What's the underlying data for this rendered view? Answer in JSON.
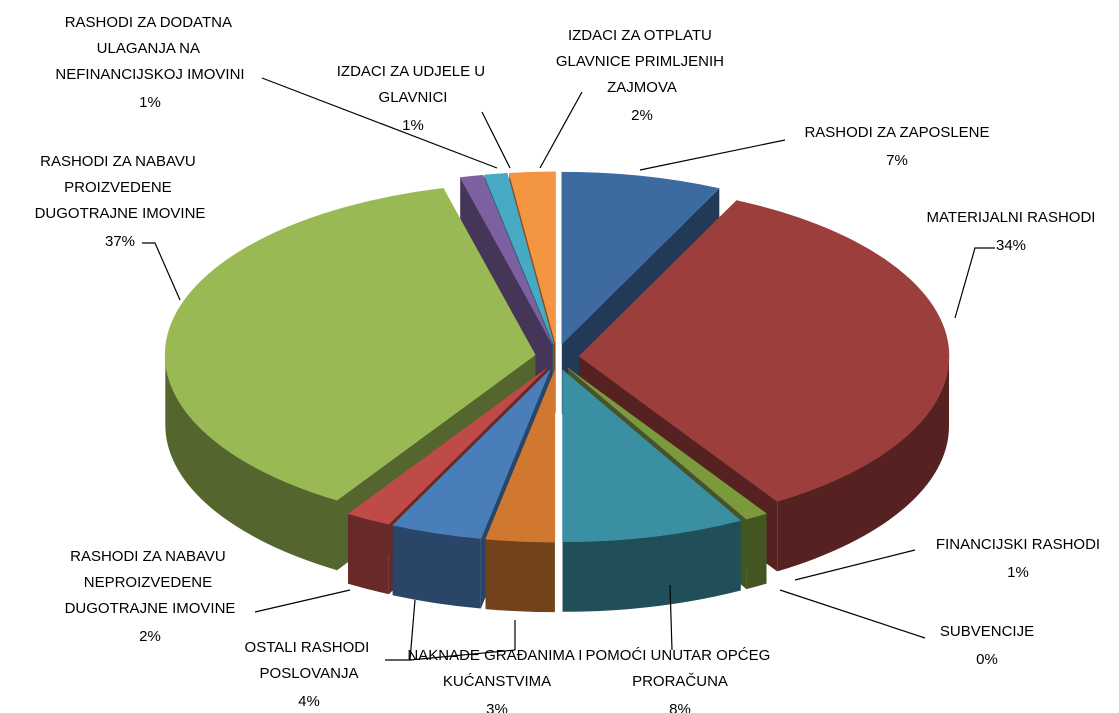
{
  "chart_data": {
    "type": "pie",
    "categories": [
      "RASHODI ZA ZAPOSLENE",
      "MATERIJALNI RASHODI",
      "FINANCIJSKI RASHODI",
      "SUBVENCIJE",
      "POMOĆI UNUTAR OPĆEG PRORAČUNA",
      "NAKNADE GRAĐANIMA I KUĆANSTVIMA",
      "OSTALI RASHODI POSLOVANJA",
      "RASHODI ZA NABAVU NEPROIZVEDENE DUGOTRAJNE IMOVINE",
      "RASHODI ZA NABAVU PROIZVEDENE DUGOTRAJNE IMOVINE",
      "RASHODI ZA DODATNA ULAGANJA NA NEFINANCIJSKOJ IMOVINI",
      "IZDACI ZA UDJELE U GLAVNICI",
      "IZDACI ZA OTPLATU GLAVNICE PRIMLJENIH ZAJMOVA"
    ],
    "values": [
      7,
      34,
      1,
      0,
      8,
      3,
      4,
      2,
      37,
      1,
      1,
      2
    ],
    "value_labels": [
      "7%",
      "34%",
      "1%",
      "0%",
      "8%",
      "3%",
      "4%",
      "2%",
      "37%",
      "1%",
      "1%",
      "2%"
    ],
    "colors": [
      "#3d6aa0",
      "#9c3e3c",
      "#7a9a3c",
      "#5f497a",
      "#3a8fa3",
      "#d0782f",
      "#4a7ebb",
      "#be4b48",
      "#98b954",
      "#7d60a0",
      "#46aac5",
      "#f49541"
    ]
  }
}
